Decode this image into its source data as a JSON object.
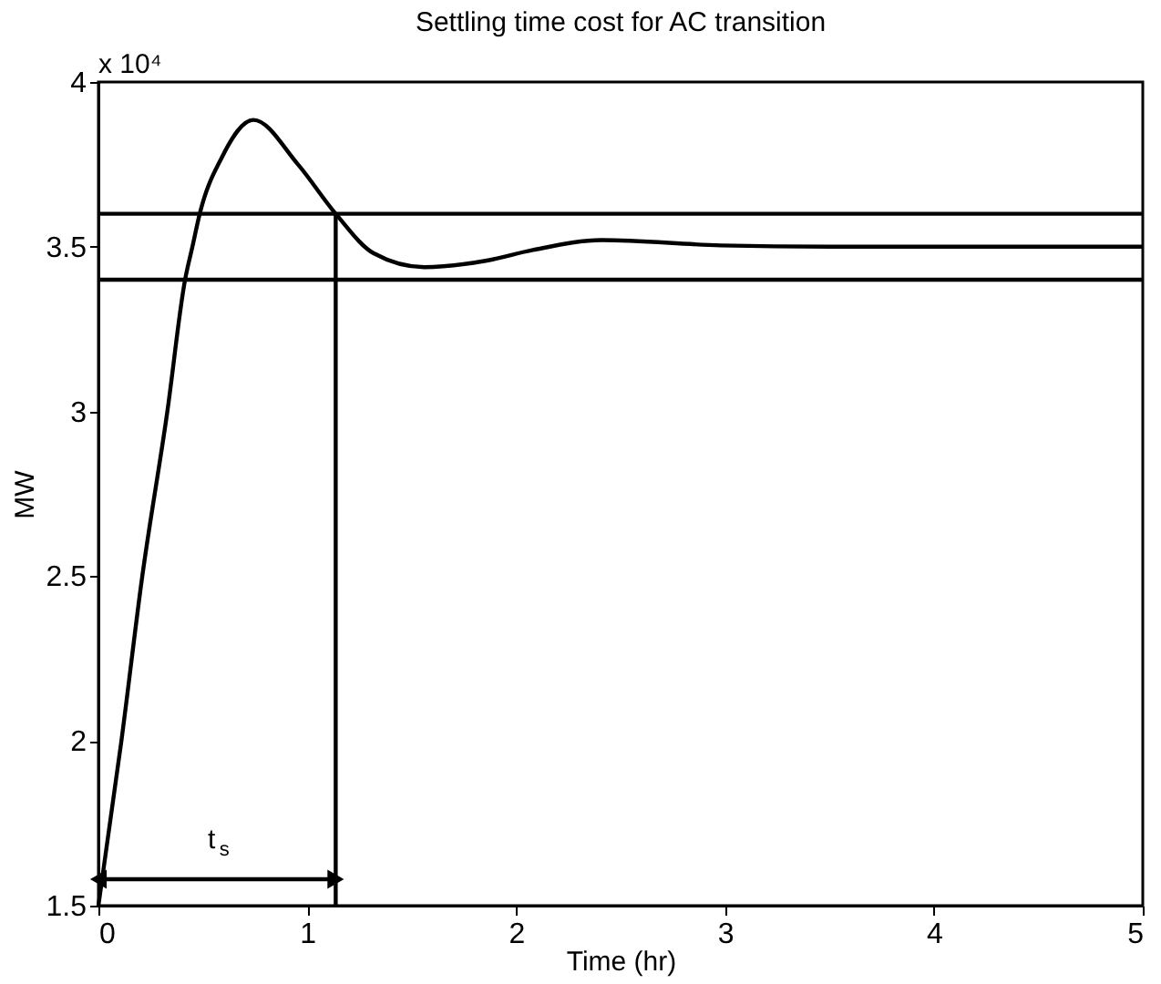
{
  "chart_data": {
    "type": "line",
    "title": "Settling time cost for AC transition",
    "xlabel": "Time (hr)",
    "ylabel": "MW",
    "xlim": [
      0,
      5
    ],
    "xticks": [
      0,
      1,
      2,
      3,
      4,
      5
    ],
    "ylim": [
      1.5,
      4
    ],
    "yticks": [
      1.5,
      2,
      2.5,
      3,
      3.5,
      4
    ],
    "grid": false,
    "line_style": "solid",
    "marker": "none",
    "series": [
      {
        "color": "#000000",
        "x": [
          0,
          0.11,
          0.21,
          0.33,
          0.415,
          0.45,
          0.485,
          0.59,
          0.742,
          0.955,
          1.136,
          1.318,
          1.56,
          1.86,
          2.08,
          2.41,
          2.98,
          3.5,
          4,
          4.5,
          5
        ],
        "values": [
          1.5,
          2,
          2.5,
          3,
          3.4,
          3.5,
          3.6,
          3.77,
          3.885,
          3.75,
          3.6,
          3.48,
          3.438,
          3.458,
          3.49,
          3.52,
          3.504,
          3.5,
          3.5,
          3.5,
          3.5
        ]
      },
      {
        "color": "#000000",
        "x": [
          1.136,
          1.136
        ],
        "values": [
          1.5,
          3.6
        ]
      },
      {
        "color": "#000000",
        "x": [
          0,
          1.136
        ],
        "values": [
          1.58,
          1.58
        ],
        "marker": "triangle"
      }
    ],
    "ref_lines": [
      {
        "axis": "y",
        "value": 3.6,
        "label": null,
        "color": "#000000"
      },
      {
        "axis": "y",
        "value": 3.4,
        "label": null,
        "color": "#000000"
      }
    ],
    "annotations": [
      {
        "text": "t$_{s}$",
        "x": 0.568,
        "y": 1.58
      },
      "x 10⁴"
    ]
  }
}
